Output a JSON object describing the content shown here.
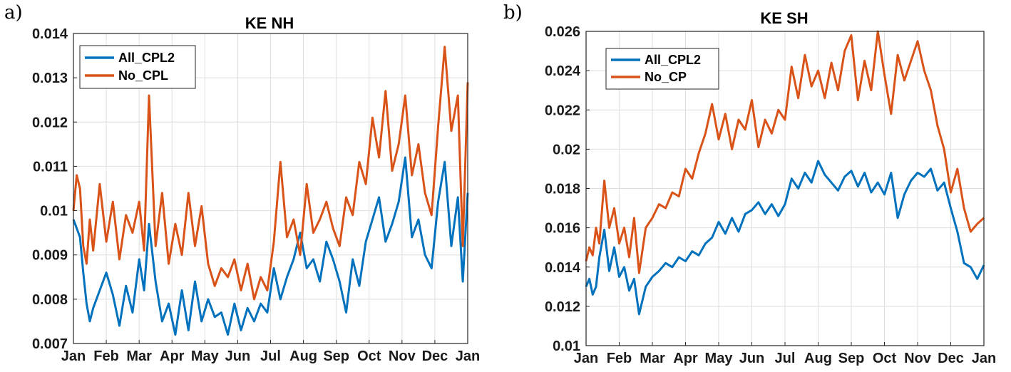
{
  "colors": {
    "blue": "#0072bd",
    "orange": "#d95319"
  },
  "chart_data": [
    {
      "type": "line",
      "panel_label": "a)",
      "title": "KE NH",
      "xlabel": "",
      "ylabel": "",
      "ylim": [
        0.007,
        0.014
      ],
      "yticks": [
        0.007,
        0.008,
        0.009,
        0.01,
        0.011,
        0.012,
        0.013,
        0.014
      ],
      "ytick_labels": [
        "0.007",
        "0.008",
        "0.009",
        "0.01",
        "0.011",
        "0.012",
        "0.013",
        "0.014"
      ],
      "xlim": [
        0,
        12
      ],
      "xticks": [
        0,
        1,
        2,
        3,
        4,
        5,
        6,
        7,
        8,
        9,
        10,
        11,
        12
      ],
      "xtick_labels": [
        "Jan",
        "Feb",
        "Mar",
        "Apr",
        "May",
        "Jun",
        "Jul",
        "Aug",
        "Sep",
        "Oct",
        "Nov",
        "Dec",
        "Jan"
      ],
      "grid": true,
      "legend_position": "top-left",
      "series": [
        {
          "name": "All_CPL2",
          "color": "#0072bd",
          "x": [
            0,
            0.1,
            0.2,
            0.3,
            0.4,
            0.5,
            0.6,
            0.8,
            1.0,
            1.2,
            1.4,
            1.6,
            1.8,
            2.0,
            2.15,
            2.3,
            2.5,
            2.7,
            2.9,
            3.1,
            3.3,
            3.5,
            3.7,
            3.9,
            4.1,
            4.3,
            4.5,
            4.7,
            4.9,
            5.1,
            5.3,
            5.5,
            5.7,
            5.9,
            6.1,
            6.3,
            6.5,
            6.7,
            6.9,
            7.1,
            7.3,
            7.5,
            7.7,
            7.9,
            8.1,
            8.3,
            8.5,
            8.7,
            8.9,
            9.1,
            9.3,
            9.5,
            9.7,
            9.9,
            10.1,
            10.3,
            10.5,
            10.7,
            10.9,
            11.1,
            11.3,
            11.5,
            11.7,
            11.85,
            12.0
          ],
          "y": [
            0.0098,
            0.0096,
            0.0094,
            0.0086,
            0.0079,
            0.0075,
            0.0078,
            0.0082,
            0.0086,
            0.0081,
            0.0074,
            0.0083,
            0.0077,
            0.0089,
            0.0082,
            0.0097,
            0.0084,
            0.0075,
            0.0079,
            0.0072,
            0.0082,
            0.0073,
            0.0084,
            0.0075,
            0.008,
            0.0076,
            0.0077,
            0.0072,
            0.0079,
            0.0073,
            0.0078,
            0.0075,
            0.0079,
            0.0077,
            0.0087,
            0.008,
            0.0085,
            0.0089,
            0.0095,
            0.0087,
            0.0089,
            0.0084,
            0.0093,
            0.0089,
            0.0084,
            0.0077,
            0.0089,
            0.0083,
            0.0093,
            0.0098,
            0.0103,
            0.0093,
            0.0097,
            0.0102,
            0.0112,
            0.0094,
            0.0098,
            0.009,
            0.0087,
            0.0102,
            0.0111,
            0.0092,
            0.0103,
            0.0084,
            0.0104
          ]
        },
        {
          "name": "No_CPL",
          "color": "#d95319",
          "x": [
            0,
            0.1,
            0.2,
            0.3,
            0.4,
            0.5,
            0.6,
            0.8,
            1.0,
            1.2,
            1.4,
            1.6,
            1.8,
            2.0,
            2.15,
            2.3,
            2.5,
            2.7,
            2.9,
            3.1,
            3.3,
            3.5,
            3.7,
            3.9,
            4.1,
            4.3,
            4.5,
            4.7,
            4.9,
            5.1,
            5.3,
            5.5,
            5.7,
            5.9,
            6.1,
            6.3,
            6.5,
            6.7,
            6.9,
            7.1,
            7.3,
            7.5,
            7.7,
            7.9,
            8.1,
            8.3,
            8.5,
            8.7,
            8.9,
            9.1,
            9.3,
            9.5,
            9.7,
            9.9,
            10.1,
            10.3,
            10.5,
            10.7,
            10.9,
            11.1,
            11.3,
            11.5,
            11.7,
            11.85,
            12.0
          ],
          "y": [
            0.01,
            0.0108,
            0.0105,
            0.0092,
            0.0088,
            0.0098,
            0.0091,
            0.0106,
            0.0093,
            0.0102,
            0.0089,
            0.0099,
            0.0095,
            0.0102,
            0.0091,
            0.0126,
            0.0092,
            0.0104,
            0.0088,
            0.0097,
            0.009,
            0.0104,
            0.0092,
            0.0101,
            0.0088,
            0.0083,
            0.0087,
            0.0085,
            0.0089,
            0.0082,
            0.0088,
            0.008,
            0.0085,
            0.0082,
            0.0093,
            0.0111,
            0.0094,
            0.0098,
            0.009,
            0.0106,
            0.0095,
            0.0098,
            0.0102,
            0.0096,
            0.0092,
            0.0103,
            0.0099,
            0.0111,
            0.0106,
            0.0121,
            0.0112,
            0.0127,
            0.0109,
            0.0115,
            0.0126,
            0.0108,
            0.0115,
            0.0104,
            0.0099,
            0.0119,
            0.0137,
            0.0118,
            0.0126,
            0.0092,
            0.0129
          ]
        }
      ]
    },
    {
      "type": "line",
      "panel_label": "b)",
      "title": "KE SH",
      "xlabel": "",
      "ylabel": "",
      "ylim": [
        0.01,
        0.026
      ],
      "yticks": [
        0.01,
        0.012,
        0.014,
        0.016,
        0.018,
        0.02,
        0.022,
        0.024,
        0.026
      ],
      "ytick_labels": [
        "0.01",
        "0.012",
        "0.014",
        "0.016",
        "0.018",
        "0.02",
        "0.022",
        "0.024",
        "0.026"
      ],
      "xlim": [
        0,
        12
      ],
      "xticks": [
        0,
        1,
        2,
        3,
        4,
        5,
        6,
        7,
        8,
        9,
        10,
        11,
        12
      ],
      "xtick_labels": [
        "Jan",
        "Feb",
        "Mar",
        "Apr",
        "May",
        "Jun",
        "Jul",
        "Aug",
        "Sep",
        "Oct",
        "Nov",
        "Dec",
        "Jan"
      ],
      "grid": true,
      "legend_position": "top-left",
      "series": [
        {
          "name": "All_CPL2",
          "color": "#0072bd",
          "x": [
            0,
            0.1,
            0.2,
            0.3,
            0.4,
            0.55,
            0.7,
            0.85,
            1.0,
            1.15,
            1.3,
            1.45,
            1.6,
            1.8,
            2.0,
            2.2,
            2.4,
            2.6,
            2.8,
            3.0,
            3.2,
            3.4,
            3.6,
            3.8,
            4.0,
            4.2,
            4.4,
            4.6,
            4.8,
            5.0,
            5.2,
            5.4,
            5.6,
            5.8,
            6.0,
            6.2,
            6.4,
            6.6,
            6.8,
            7.0,
            7.2,
            7.4,
            7.6,
            7.8,
            8.0,
            8.2,
            8.4,
            8.6,
            8.8,
            9.0,
            9.2,
            9.4,
            9.6,
            9.8,
            10.0,
            10.2,
            10.4,
            10.6,
            10.8,
            11.0,
            11.2,
            11.4,
            11.6,
            11.8,
            12.0
          ],
          "y": [
            0.013,
            0.0134,
            0.0126,
            0.013,
            0.0145,
            0.0159,
            0.0138,
            0.015,
            0.0135,
            0.014,
            0.0128,
            0.0134,
            0.0116,
            0.013,
            0.0135,
            0.0138,
            0.0142,
            0.014,
            0.0145,
            0.0143,
            0.0148,
            0.0146,
            0.0152,
            0.0155,
            0.0163,
            0.0157,
            0.0165,
            0.0158,
            0.0167,
            0.0169,
            0.0173,
            0.0167,
            0.0172,
            0.0166,
            0.0172,
            0.0185,
            0.018,
            0.0188,
            0.0183,
            0.0194,
            0.0187,
            0.0183,
            0.0179,
            0.0186,
            0.0189,
            0.0181,
            0.0188,
            0.0178,
            0.0183,
            0.0177,
            0.0188,
            0.0165,
            0.0177,
            0.0184,
            0.0188,
            0.0186,
            0.019,
            0.0179,
            0.0183,
            0.017,
            0.0158,
            0.0142,
            0.014,
            0.0134,
            0.0141
          ]
        },
        {
          "name": "No_CP",
          "color": "#d95319",
          "x": [
            0,
            0.1,
            0.2,
            0.3,
            0.4,
            0.55,
            0.7,
            0.85,
            1.0,
            1.15,
            1.3,
            1.45,
            1.6,
            1.8,
            2.0,
            2.2,
            2.4,
            2.6,
            2.8,
            3.0,
            3.2,
            3.4,
            3.6,
            3.8,
            4.0,
            4.2,
            4.4,
            4.6,
            4.8,
            5.0,
            5.2,
            5.4,
            5.6,
            5.8,
            6.0,
            6.2,
            6.4,
            6.6,
            6.8,
            7.0,
            7.2,
            7.4,
            7.6,
            7.8,
            8.0,
            8.2,
            8.4,
            8.6,
            8.8,
            9.0,
            9.2,
            9.4,
            9.6,
            9.8,
            10.0,
            10.2,
            10.4,
            10.6,
            10.8,
            11.0,
            11.2,
            11.4,
            11.6,
            11.8,
            12.0
          ],
          "y": [
            0.0143,
            0.015,
            0.0146,
            0.016,
            0.0152,
            0.0184,
            0.016,
            0.017,
            0.0152,
            0.016,
            0.0145,
            0.0165,
            0.0137,
            0.016,
            0.0165,
            0.0172,
            0.017,
            0.0178,
            0.0176,
            0.019,
            0.0185,
            0.0198,
            0.0208,
            0.0223,
            0.0205,
            0.0218,
            0.02,
            0.0215,
            0.021,
            0.0225,
            0.0201,
            0.0215,
            0.0208,
            0.022,
            0.0215,
            0.0242,
            0.0226,
            0.0248,
            0.0232,
            0.024,
            0.0226,
            0.0244,
            0.023,
            0.025,
            0.0258,
            0.0225,
            0.0245,
            0.023,
            0.026,
            0.0238,
            0.0218,
            0.0248,
            0.0235,
            0.0245,
            0.0255,
            0.024,
            0.023,
            0.0212,
            0.02,
            0.0178,
            0.019,
            0.017,
            0.0158,
            0.0162,
            0.0165
          ]
        }
      ]
    }
  ]
}
